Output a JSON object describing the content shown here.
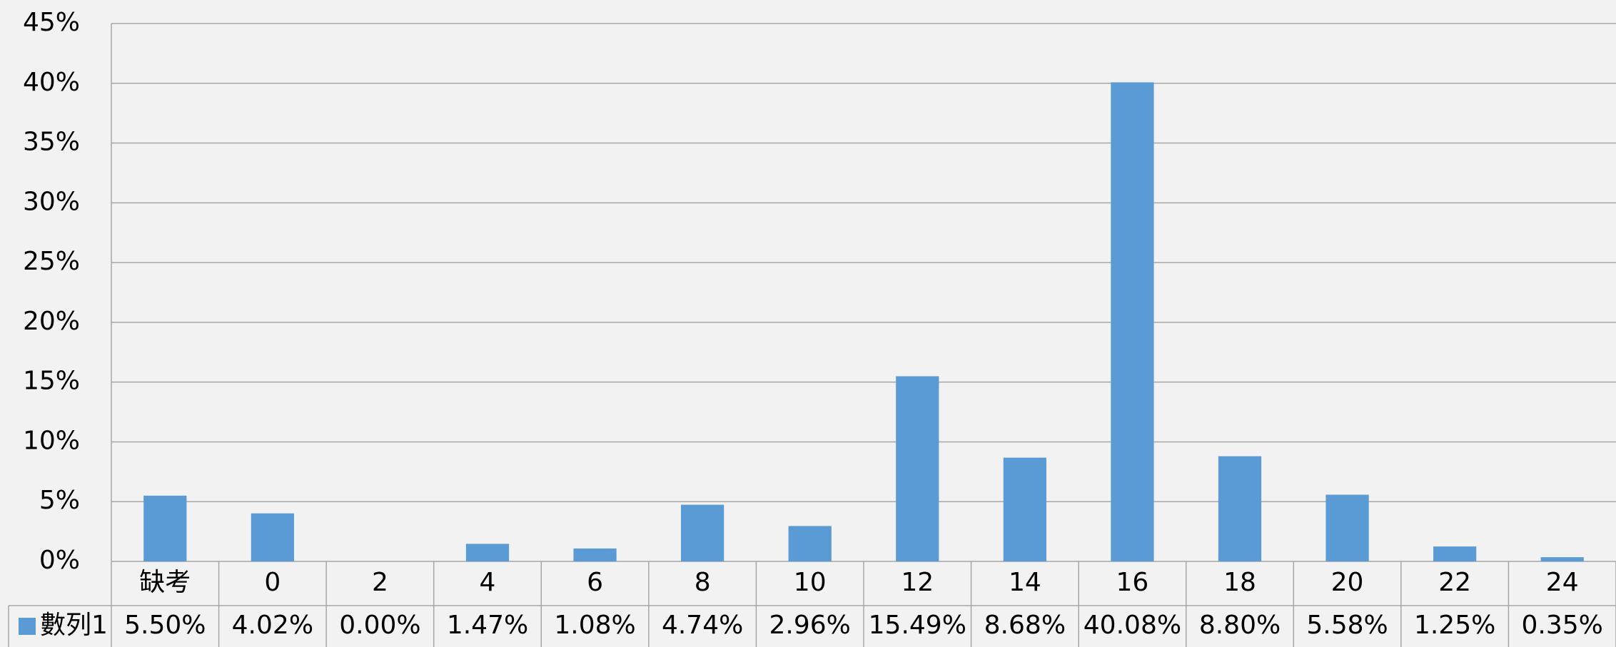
{
  "chart_data": {
    "type": "bar",
    "categories": [
      "缺考",
      "0",
      "2",
      "4",
      "6",
      "8",
      "10",
      "12",
      "14",
      "16",
      "18",
      "20",
      "22",
      "24"
    ],
    "series": [
      {
        "name": "數列1",
        "color": "#5b9bd5",
        "values": [
          5.5,
          4.02,
          0.0,
          1.47,
          1.08,
          4.74,
          2.96,
          15.49,
          8.68,
          40.08,
          8.8,
          5.58,
          1.25,
          0.35
        ],
        "value_labels": [
          "5.50%",
          "4.02%",
          "0.00%",
          "1.47%",
          "1.08%",
          "4.74%",
          "2.96%",
          "15.49%",
          "8.68%",
          "40.08%",
          "8.80%",
          "5.58%",
          "1.25%",
          "0.35%"
        ]
      }
    ],
    "ylim": [
      0,
      45
    ],
    "yticks": [
      {
        "value": 0,
        "label": "0%"
      },
      {
        "value": 5,
        "label": "5%"
      },
      {
        "value": 10,
        "label": "10%"
      },
      {
        "value": 15,
        "label": "15%"
      },
      {
        "value": 20,
        "label": "20%"
      },
      {
        "value": 25,
        "label": "25%"
      },
      {
        "value": 30,
        "label": "30%"
      },
      {
        "value": 35,
        "label": "35%"
      },
      {
        "value": 40,
        "label": "40%"
      },
      {
        "value": 45,
        "label": "45%"
      }
    ],
    "grid": true,
    "data_table": true
  }
}
